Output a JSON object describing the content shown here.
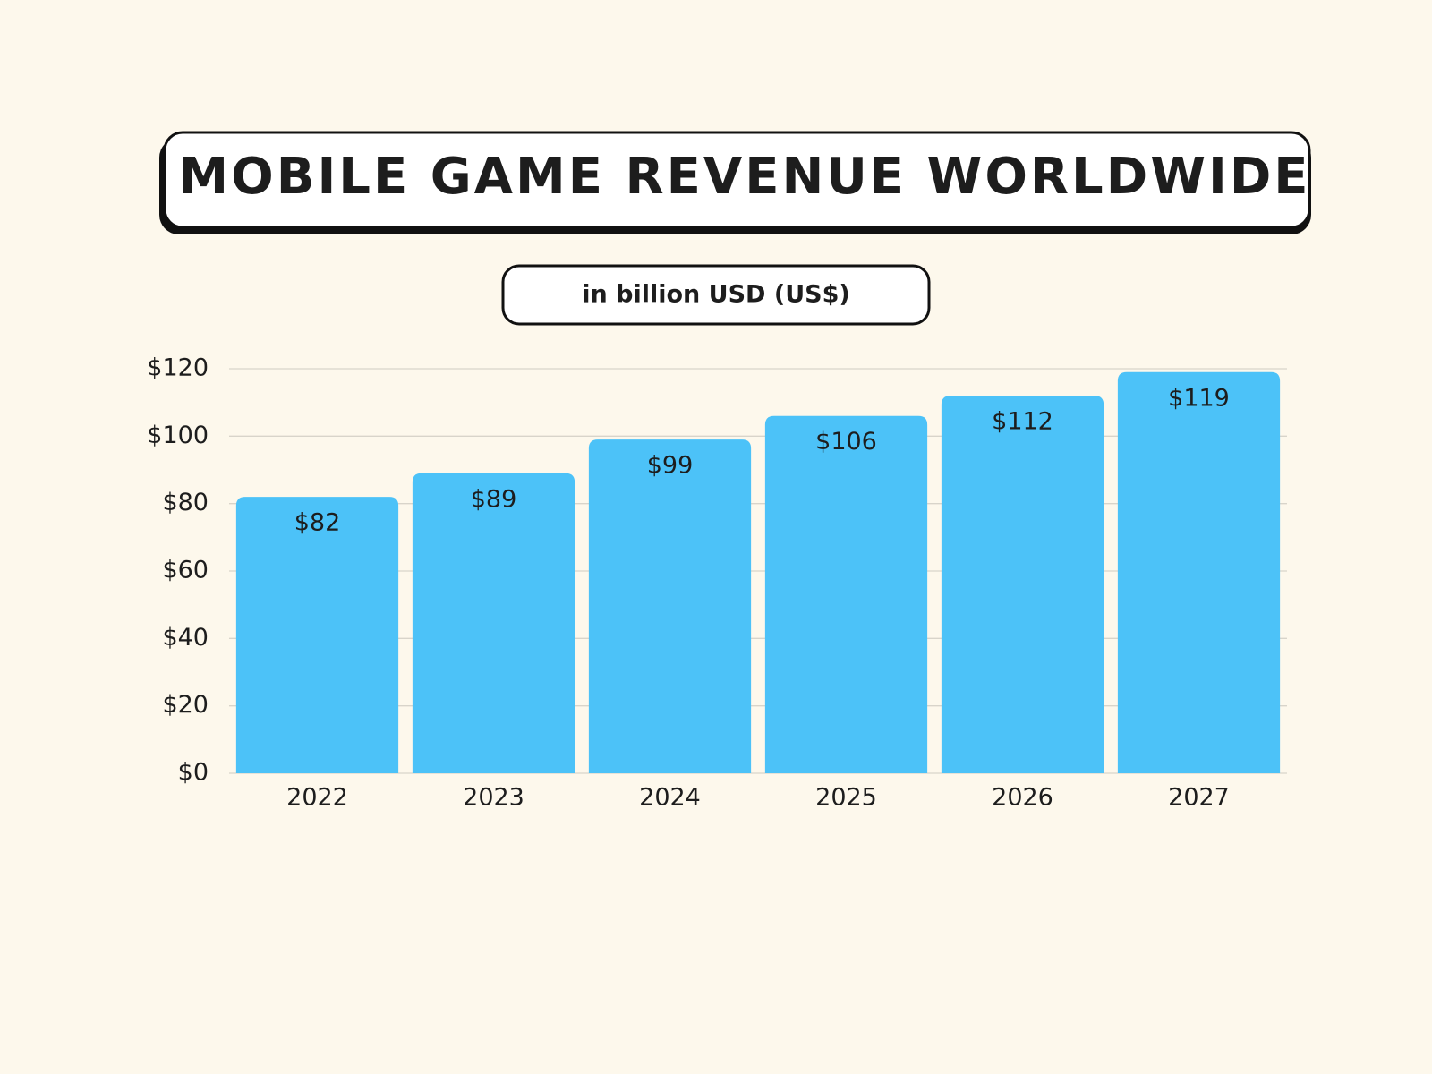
{
  "chart_data": {
    "type": "bar",
    "title": "MOBILE GAME REVENUE WORLDWIDE",
    "subtitle": "in billion USD (US$)",
    "categories": [
      "2022",
      "2023",
      "2024",
      "2025",
      "2026",
      "2027"
    ],
    "values": [
      82,
      89,
      99,
      106,
      112,
      119
    ],
    "value_labels": [
      "$82",
      "$89",
      "$99",
      "$106",
      "$112",
      "$119"
    ],
    "color": "#4cc2f8",
    "ylim": [
      0,
      120
    ],
    "yticks": [
      {
        "value": 0,
        "label": "$0"
      },
      {
        "value": 20,
        "label": "$20"
      },
      {
        "value": 40,
        "label": "$40"
      },
      {
        "value": 60,
        "label": "$60"
      },
      {
        "value": 80,
        "label": "$80"
      },
      {
        "value": 100,
        "label": "$100"
      },
      {
        "value": 120,
        "label": "$120"
      }
    ],
    "grid": true
  }
}
